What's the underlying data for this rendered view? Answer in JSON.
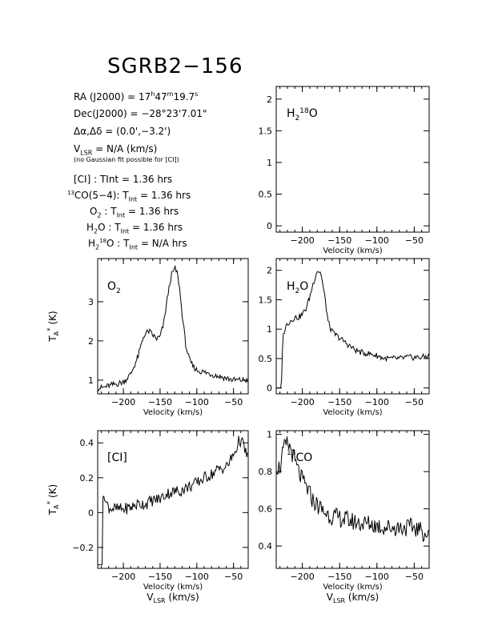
{
  "header": {
    "title": "SGRB2−156",
    "ra": "RA (J2000) =  17h47m19.7s",
    "dec": "Dec(J2000) =  −28°23'7.01\"",
    "offset": "Δα,Δδ = (0.0',−3.2')",
    "vlsr": "VLSR = N/A  (km/s)",
    "note": "(no Gaussian fit possible for [CI])",
    "tint": [
      "[CI] : TInt = 1.36 hrs",
      "13CO(5−4): TInt = 1.36 hrs",
      "O2 : TInt = 1.36 hrs",
      "H2O : TInt = 1.36 hrs",
      "H218O : TInt = N/A  hrs"
    ]
  },
  "chart_data": [
    {
      "type": "line",
      "panel": "H2 18O",
      "label": "H218O",
      "xlabel": "Velocity (km/s)",
      "ylabel": "",
      "xlim": [
        -235,
        -30
      ],
      "ylim": [
        -0.1,
        2.2
      ],
      "xticks": [
        -200,
        -150,
        -100,
        -50
      ],
      "yticks": [
        0,
        0.5,
        1,
        1.5,
        2
      ],
      "series": []
    },
    {
      "type": "line",
      "panel": "O2",
      "label": "O2",
      "xlabel": "Velocity (km/s)",
      "ylabel": "TA* (K)",
      "xlim": [
        -235,
        -30
      ],
      "ylim": [
        0.65,
        4.1
      ],
      "xticks": [
        -200,
        -150,
        -100,
        -50
      ],
      "yticks": [
        1,
        2,
        3
      ],
      "x": [
        -230,
        -220,
        -210,
        -200,
        -190,
        -180,
        -172,
        -165,
        -160,
        -155,
        -150,
        -145,
        -140,
        -135,
        -130,
        -127,
        -124,
        -120,
        -115,
        -110,
        -105,
        -100,
        -90,
        -80,
        -70,
        -60,
        -50,
        -40,
        -30
      ],
      "y": [
        0.8,
        0.85,
        0.9,
        0.95,
        1.15,
        1.6,
        2.15,
        2.25,
        2.15,
        2.05,
        2.1,
        2.45,
        3.1,
        3.65,
        3.85,
        3.75,
        3.45,
        2.7,
        1.9,
        1.5,
        1.35,
        1.25,
        1.2,
        1.15,
        1.1,
        1.05,
        1.0,
        1.0,
        1.0
      ]
    },
    {
      "type": "line",
      "panel": "H2O",
      "label": "H2O",
      "xlabel": "Velocity (km/s)",
      "ylabel": "",
      "xlim": [
        -235,
        -30
      ],
      "ylim": [
        -0.1,
        2.2
      ],
      "xticks": [
        -200,
        -150,
        -100,
        -50
      ],
      "yticks": [
        0,
        0.5,
        1,
        1.5,
        2
      ],
      "x": [
        -235,
        -230,
        -228,
        -227,
        -225,
        -220,
        -215,
        -210,
        -205,
        -200,
        -195,
        -190,
        -185,
        -180,
        -175,
        -170,
        -165,
        -160,
        -155,
        -150,
        -140,
        -130,
        -120,
        -110,
        -100,
        -90,
        -80,
        -70,
        -60,
        -50,
        -40,
        -30
      ],
      "y": [
        0,
        0,
        0,
        0.65,
        0.95,
        1.1,
        1.15,
        1.2,
        1.2,
        1.25,
        1.35,
        1.55,
        1.8,
        2.0,
        1.95,
        1.55,
        1.1,
        0.95,
        0.9,
        0.85,
        0.75,
        0.65,
        0.6,
        0.58,
        0.55,
        0.5,
        0.5,
        0.5,
        0.52,
        0.52,
        0.52,
        0.55
      ]
    },
    {
      "type": "line",
      "panel": "CI",
      "label": "[CI]",
      "xlabel": "Velocity (km/s)",
      "xlabel2": "VLSR (km/s)",
      "ylabel": "TA* (K)",
      "xlim": [
        -235,
        -30
      ],
      "ylim": [
        -0.32,
        0.47
      ],
      "xticks": [
        -200,
        -150,
        -100,
        -50
      ],
      "yticks": [
        -0.2,
        0,
        0.2,
        0.4
      ],
      "x": [
        -235,
        -229,
        -228,
        -226,
        -224,
        -220,
        -210,
        -200,
        -190,
        -180,
        -170,
        -160,
        -150,
        -140,
        -130,
        -120,
        -110,
        -100,
        -90,
        -80,
        -70,
        -60,
        -50,
        -45,
        -42,
        -38,
        -32
      ],
      "y": [
        -0.3,
        -0.3,
        0.05,
        0.12,
        0.06,
        0.03,
        0.02,
        0.02,
        0.03,
        0.05,
        0.05,
        0.07,
        0.08,
        0.11,
        0.12,
        0.13,
        0.15,
        0.17,
        0.2,
        0.22,
        0.25,
        0.26,
        0.33,
        0.38,
        0.42,
        0.4,
        0.33
      ]
    },
    {
      "type": "line",
      "panel": "13CO",
      "label": "13CO",
      "xlabel": "Velocity (km/s)",
      "xlabel2": "VLSR (km/s)",
      "ylabel": "",
      "xlim": [
        -235,
        -30
      ],
      "ylim": [
        0.28,
        1.02
      ],
      "xticks": [
        -200,
        -150,
        -100,
        -50
      ],
      "yticks": [
        0.4,
        0.6,
        0.8,
        1
      ],
      "x": [
        -235,
        -230,
        -225,
        -220,
        -215,
        -210,
        -205,
        -200,
        -195,
        -190,
        -185,
        -180,
        -170,
        -160,
        -150,
        -140,
        -130,
        -120,
        -110,
        -100,
        -90,
        -80,
        -70,
        -60,
        -50,
        -40,
        -30
      ],
      "y": [
        0.83,
        0.82,
        0.92,
        0.95,
        0.92,
        0.85,
        0.8,
        0.75,
        0.72,
        0.68,
        0.64,
        0.62,
        0.58,
        0.56,
        0.55,
        0.54,
        0.53,
        0.52,
        0.52,
        0.51,
        0.5,
        0.5,
        0.5,
        0.5,
        0.5,
        0.48,
        0.45
      ]
    }
  ]
}
